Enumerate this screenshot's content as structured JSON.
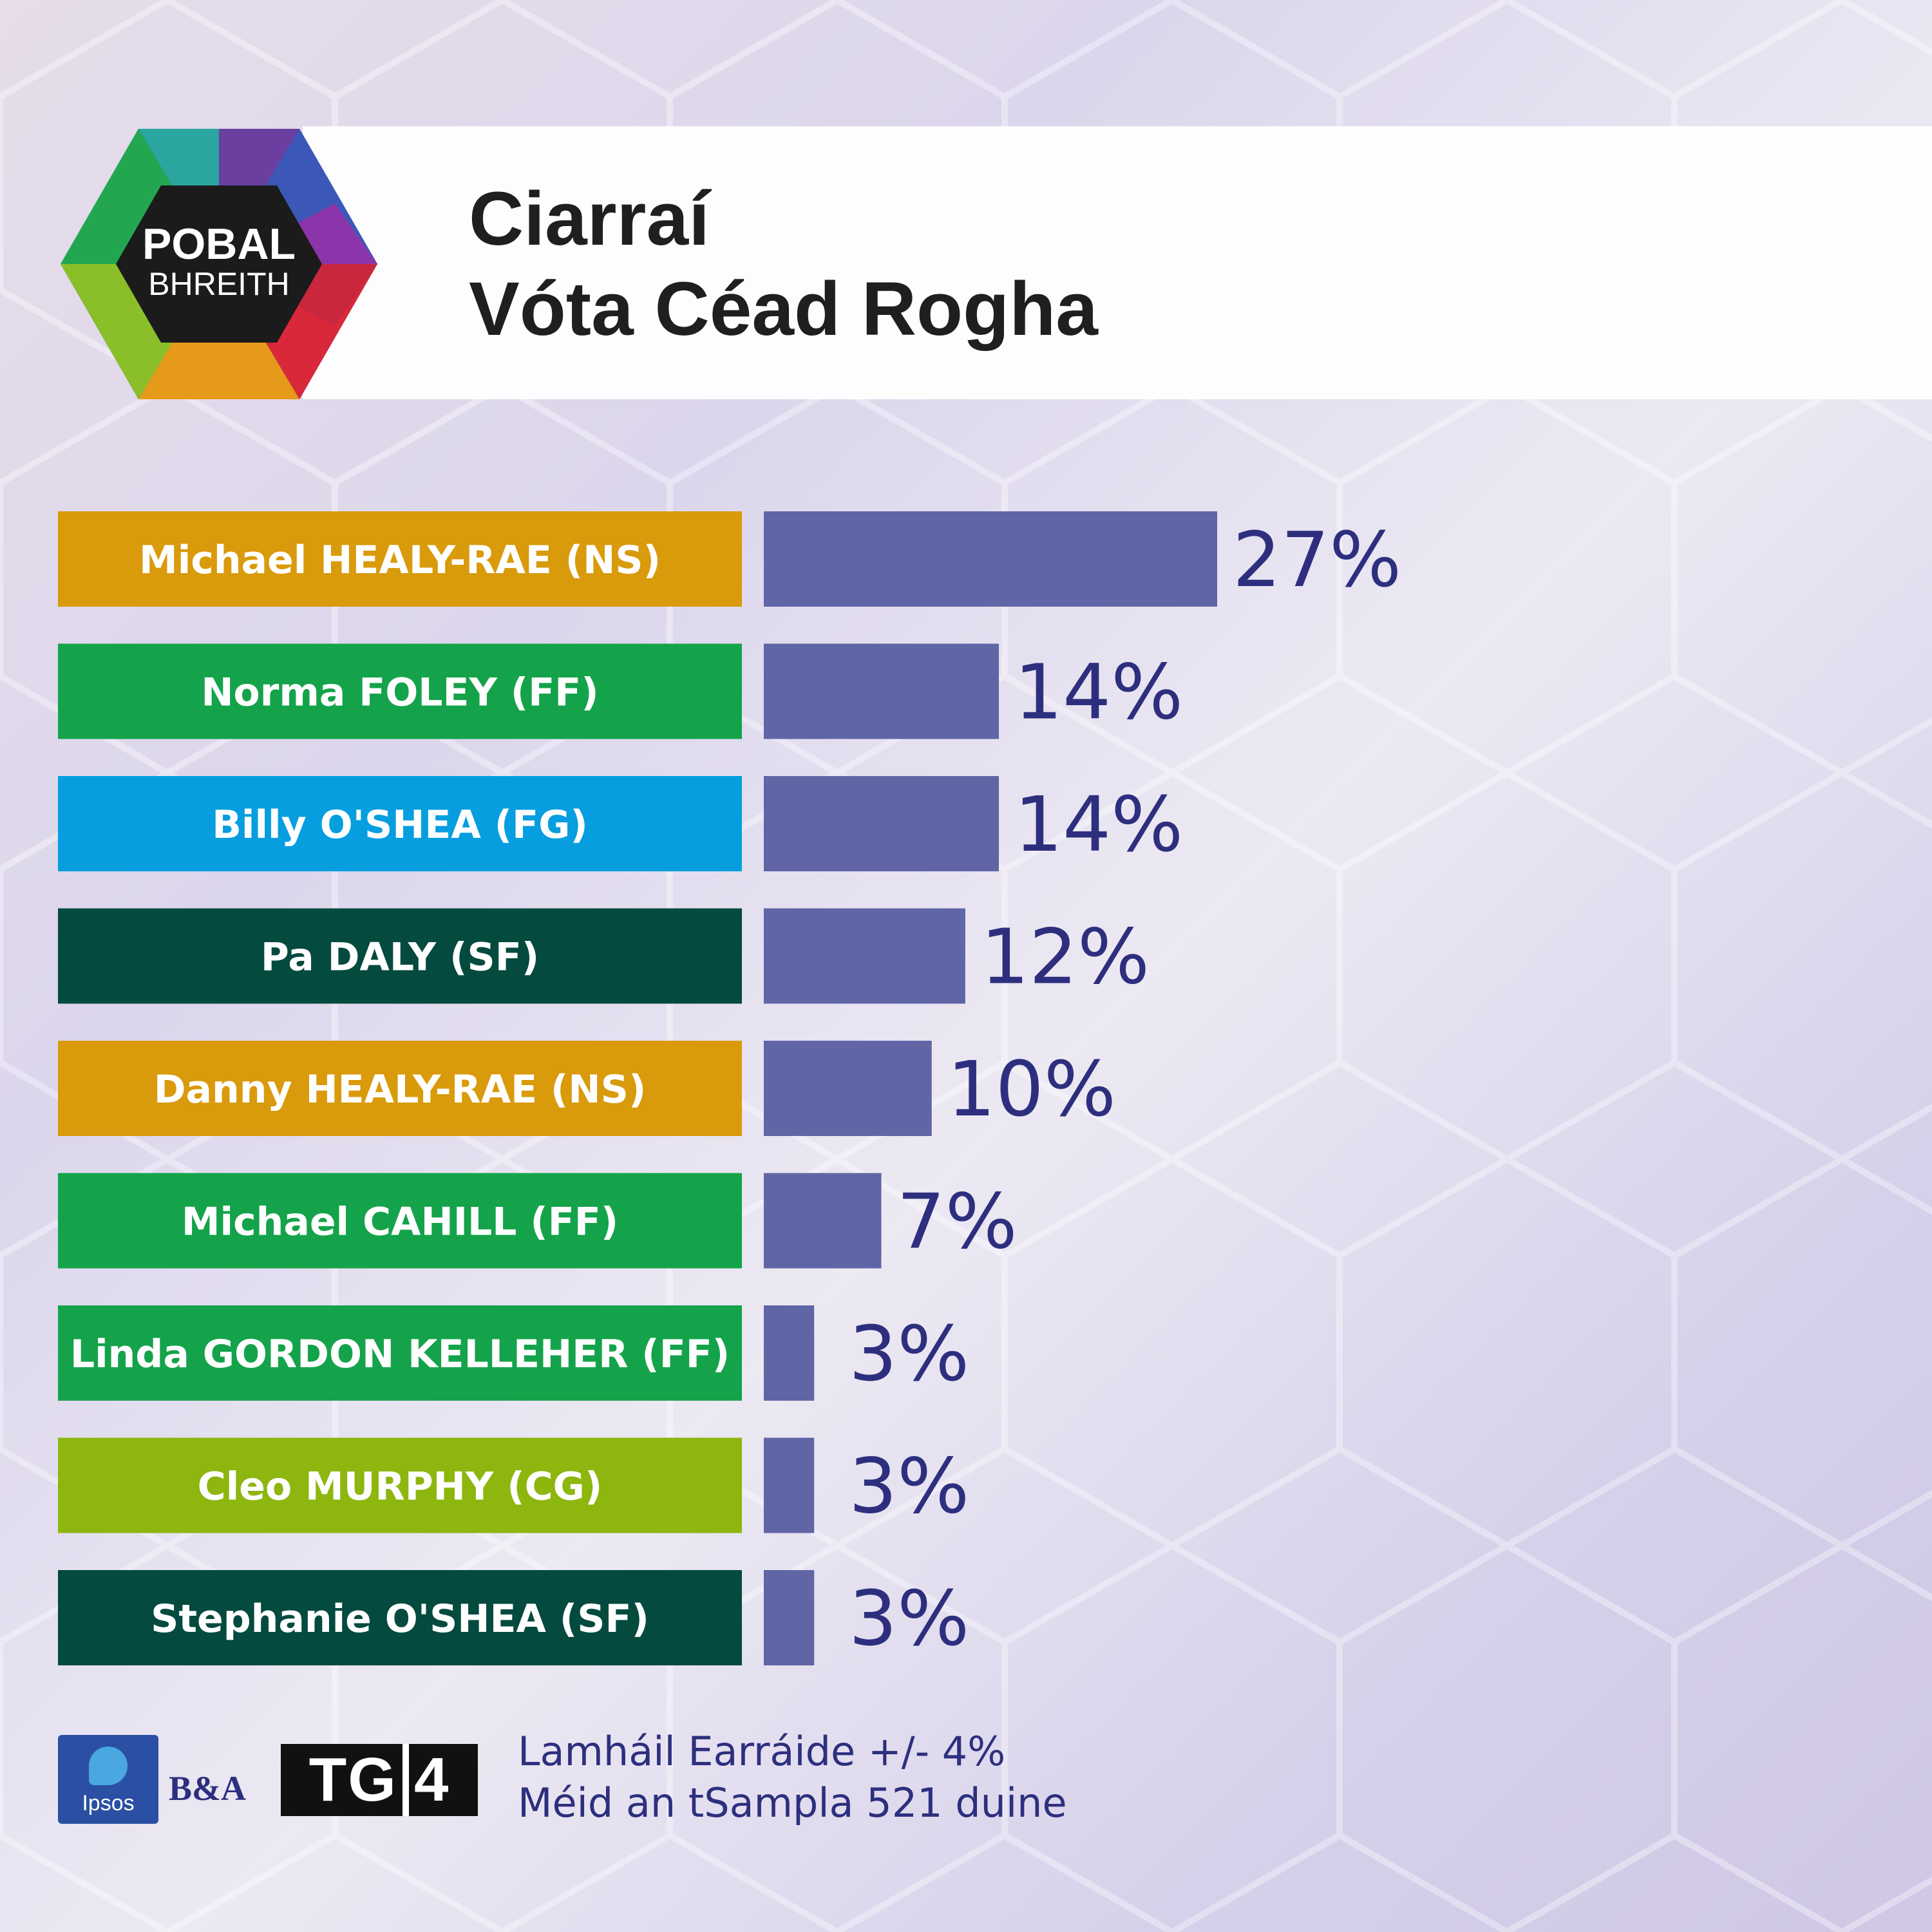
{
  "branding": {
    "poll_logo_line1": "POBAL",
    "poll_logo_line2": "BHREITH",
    "ipsos_logo_text": "Ipsos",
    "ba_logo_text": "B&A",
    "tg4_logo_text_a": "TG",
    "tg4_logo_text_b": "4"
  },
  "header": {
    "title_line1": "Ciarraí",
    "title_line2": "Vóta Céad Rogha"
  },
  "chart_data": {
    "type": "bar",
    "orientation": "horizontal",
    "title": "Vóta Céad Rogha",
    "categories": [
      "Michael HEALY-RAE (NS)",
      "Norma FOLEY (FF)",
      "Billy O'SHEA (FG)",
      "Pa DALY (SF)",
      "Danny HEALY-RAE (NS)",
      "Michael CAHILL (FF)",
      "Linda GORDON KELLEHER (FF)",
      "Cleo MURPHY (CG)",
      "Stephanie O'SHEA (SF)"
    ],
    "values": [
      27,
      14,
      14,
      12,
      10,
      7,
      3,
      3,
      3
    ],
    "value_labels": [
      "27%",
      "14%",
      "14%",
      "12%",
      "10%",
      "7%",
      "3%",
      "3%",
      "3%"
    ],
    "label_colors": [
      "#d99a0b",
      "#14a34a",
      "#079ee0",
      "#044a3f",
      "#d99a0b",
      "#14a34a",
      "#14a34a",
      "#8db60f",
      "#044a3f"
    ],
    "bar_color": "#6065a6",
    "value_label_color": "#2d2f7e",
    "xlim": [
      0,
      27
    ],
    "grid": false
  },
  "footer": {
    "margin_of_error": "Lamháil Earráide +/- 4%",
    "sample_size": "Méid an tSampla 521 duine"
  }
}
